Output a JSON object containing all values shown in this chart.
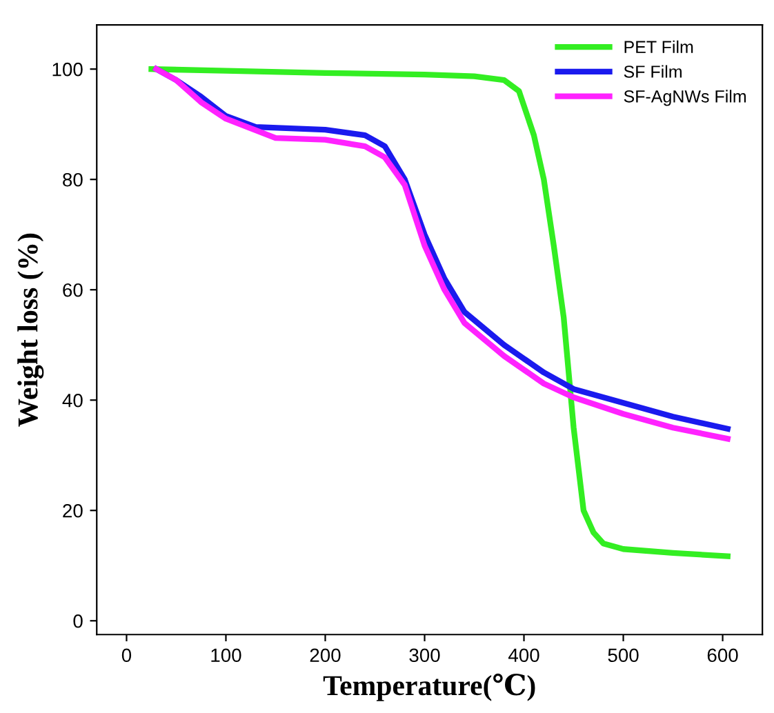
{
  "chart_data": {
    "type": "line",
    "xlabel": "Temperature(℃)",
    "ylabel": "Weight loss (%)",
    "xlim": [
      -30,
      640
    ],
    "ylim": [
      -2.5,
      108
    ],
    "xticks": [
      0,
      100,
      200,
      300,
      400,
      500,
      600
    ],
    "yticks": [
      0,
      20,
      40,
      60,
      80,
      100
    ],
    "legend": "top right",
    "grid": false,
    "marker": "none",
    "line_style": "solid",
    "series": [
      {
        "name": "PET Film",
        "color": "#33ee22",
        "x": [
          25,
          100,
          200,
          300,
          350,
          380,
          395,
          410,
          420,
          430,
          440,
          450,
          460,
          470,
          480,
          500,
          550,
          605
        ],
        "values": [
          100,
          99.7,
          99.3,
          99,
          98.7,
          98,
          96,
          88,
          80,
          68,
          55,
          35,
          20,
          16,
          14,
          13,
          12.3,
          11.7
        ]
      },
      {
        "name": "SF Film",
        "color": "#1a1aee",
        "x": [
          30,
          50,
          75,
          100,
          130,
          200,
          240,
          260,
          280,
          300,
          320,
          340,
          380,
          420,
          450,
          500,
          550,
          605
        ],
        "values": [
          100,
          98,
          95,
          91.5,
          89.5,
          89,
          88,
          86,
          80,
          70,
          62,
          56,
          50,
          45,
          42,
          39.5,
          37,
          34.8
        ]
      },
      {
        "name": "SF-AgNWs Film",
        "color": "#ff22ff",
        "x": [
          30,
          50,
          75,
          100,
          150,
          200,
          240,
          260,
          280,
          300,
          320,
          340,
          380,
          420,
          450,
          500,
          550,
          605
        ],
        "values": [
          100,
          98,
          94,
          91,
          87.5,
          87.2,
          86,
          84,
          79,
          68,
          60,
          54,
          48,
          43,
          40.5,
          37.5,
          35,
          33
        ]
      }
    ]
  }
}
